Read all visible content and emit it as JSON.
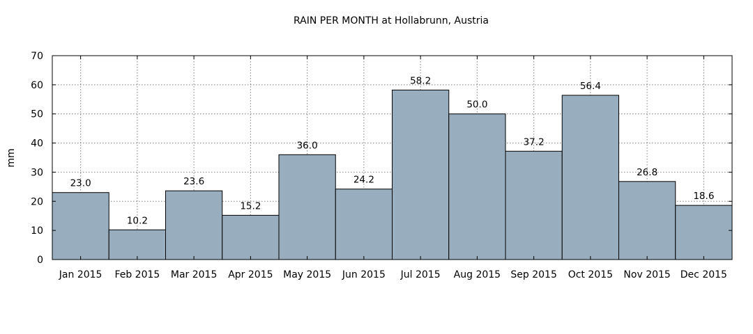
{
  "chart_data": {
    "type": "bar",
    "title": "RAIN PER MONTH at Hollabrunn, Austria",
    "xlabel": "",
    "ylabel": "mm",
    "ylim": [
      0,
      70
    ],
    "yticks": [
      0,
      10,
      20,
      30,
      40,
      50,
      60,
      70
    ],
    "grid": true,
    "bar_color": "#98adbd",
    "categories": [
      "Jan 2015",
      "Feb 2015",
      "Mar 2015",
      "Apr 2015",
      "May 2015",
      "Jun 2015",
      "Jul 2015",
      "Aug 2015",
      "Sep 2015",
      "Oct 2015",
      "Nov 2015",
      "Dec 2015"
    ],
    "values": [
      23.0,
      10.2,
      23.6,
      15.2,
      36.0,
      24.2,
      58.2,
      50.0,
      37.2,
      56.4,
      26.8,
      18.6
    ],
    "data_labels": [
      "23.0",
      "10.2",
      "23.6",
      "15.2",
      "36.0",
      "24.2",
      "58.2",
      "50.0",
      "37.2",
      "56.4",
      "26.8",
      "18.6"
    ]
  }
}
